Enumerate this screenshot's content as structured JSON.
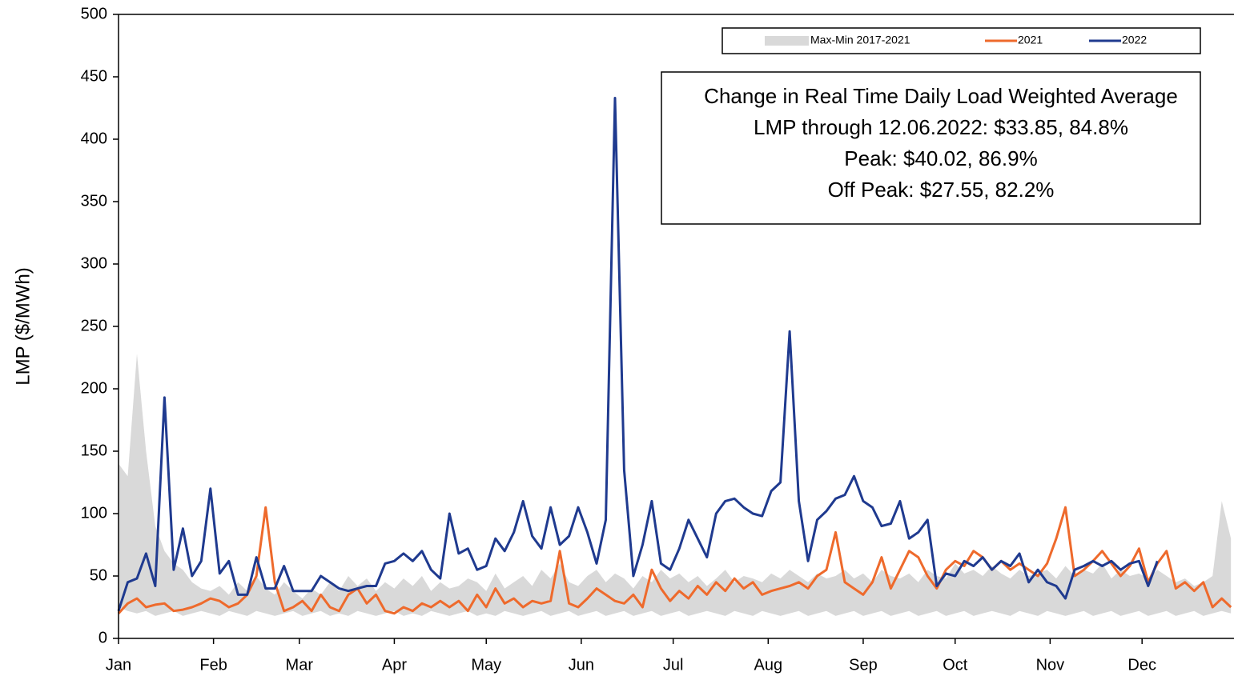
{
  "chart_data": {
    "type": "line",
    "ylabel": "LMP ($/MWh)",
    "annotation": [
      "Change in Real Time Daily Load Weighted Average",
      "LMP through 12.06.2022: $33.85, 84.8%",
      "Peak: $40.02, 86.9%",
      "Off Peak: $27.55, 82.2%"
    ],
    "legend": "upper right",
    "xlim": [
      1,
      365
    ],
    "xticks": [
      {
        "value": 1,
        "label": "Jan"
      },
      {
        "value": 32,
        "label": "Feb"
      },
      {
        "value": 60,
        "label": "Mar"
      },
      {
        "value": 91,
        "label": "Apr"
      },
      {
        "value": 121,
        "label": "May"
      },
      {
        "value": 152,
        "label": "Jun"
      },
      {
        "value": 182,
        "label": "Jul"
      },
      {
        "value": 213,
        "label": "Aug"
      },
      {
        "value": 244,
        "label": "Sep"
      },
      {
        "value": 274,
        "label": "Oct"
      },
      {
        "value": 305,
        "label": "Nov"
      },
      {
        "value": 335,
        "label": "Dec"
      }
    ],
    "ylim": [
      0,
      500
    ],
    "yticks": [
      0,
      50,
      100,
      150,
      200,
      250,
      300,
      350,
      400,
      450,
      500
    ],
    "x": [
      1,
      4,
      7,
      10,
      13,
      16,
      19,
      22,
      25,
      28,
      31,
      34,
      37,
      40,
      43,
      46,
      49,
      52,
      55,
      58,
      61,
      64,
      67,
      70,
      73,
      76,
      79,
      82,
      85,
      88,
      91,
      94,
      97,
      100,
      103,
      106,
      109,
      112,
      115,
      118,
      121,
      124,
      127,
      130,
      133,
      136,
      139,
      142,
      145,
      148,
      151,
      154,
      157,
      160,
      163,
      166,
      169,
      172,
      175,
      178,
      181,
      184,
      187,
      190,
      193,
      196,
      199,
      202,
      205,
      208,
      211,
      214,
      217,
      220,
      223,
      226,
      229,
      232,
      235,
      238,
      241,
      244,
      247,
      250,
      253,
      256,
      259,
      262,
      265,
      268,
      271,
      274,
      277,
      280,
      283,
      286,
      289,
      292,
      295,
      298,
      301,
      304,
      307,
      310,
      313,
      316,
      319,
      322,
      325,
      328,
      331,
      334,
      337,
      340,
      343,
      346,
      349,
      352,
      355,
      358,
      361,
      364
    ],
    "series": [
      {
        "name": "Max-Min 2017-2021",
        "kind": "band",
        "color": "#d9d9d9",
        "values": [
          140,
          130,
          228,
          150,
          90,
          70,
          60,
          55,
          45,
          40,
          38,
          42,
          35,
          45,
          38,
          50,
          40,
          35,
          45,
          38,
          32,
          40,
          35,
          45,
          38,
          50,
          42,
          48,
          38,
          45,
          40,
          48,
          42,
          50,
          38,
          45,
          40,
          42,
          48,
          45,
          38,
          52,
          40,
          45,
          50,
          42,
          55,
          48,
          60,
          45,
          42,
          50,
          55,
          45,
          52,
          48,
          40,
          50,
          45,
          55,
          48,
          52,
          45,
          50,
          42,
          48,
          55,
          45,
          50,
          48,
          45,
          52,
          48,
          55,
          50,
          45,
          52,
          48,
          50,
          55,
          48,
          52,
          45,
          55,
          50,
          48,
          52,
          45,
          55,
          50,
          48,
          60,
          52,
          55,
          50,
          58,
          52,
          48,
          55,
          50,
          52,
          55,
          48,
          58,
          50,
          55,
          52,
          60,
          48,
          55,
          50,
          52,
          48,
          55,
          50,
          45,
          48,
          42,
          45,
          50,
          110,
          80
        ],
        "min": [
          25,
          22,
          20,
          22,
          18,
          20,
          22,
          18,
          20,
          22,
          20,
          18,
          22,
          20,
          18,
          22,
          20,
          18,
          20,
          22,
          18,
          20,
          22,
          18,
          20,
          18,
          22,
          20,
          18,
          20,
          22,
          18,
          20,
          18,
          22,
          20,
          18,
          20,
          22,
          18,
          20,
          18,
          22,
          20,
          18,
          20,
          22,
          18,
          20,
          22,
          18,
          20,
          22,
          18,
          20,
          22,
          18,
          20,
          22,
          18,
          20,
          22,
          18,
          20,
          22,
          20,
          18,
          22,
          20,
          18,
          22,
          20,
          18,
          20,
          22,
          18,
          20,
          22,
          18,
          20,
          22,
          18,
          20,
          22,
          18,
          20,
          22,
          18,
          20,
          22,
          18,
          20,
          22,
          18,
          20,
          22,
          20,
          18,
          22,
          20,
          18,
          22,
          20,
          18,
          20,
          22,
          18,
          20,
          22,
          18,
          20,
          22,
          18,
          20,
          22,
          18,
          20,
          22,
          18,
          20,
          22,
          20
        ]
      },
      {
        "name": "2021",
        "kind": "line",
        "color": "#ee6a2c",
        "values": [
          20,
          28,
          32,
          25,
          27,
          28,
          22,
          23,
          25,
          28,
          32,
          30,
          25,
          28,
          35,
          50,
          105,
          45,
          22,
          25,
          30,
          22,
          35,
          25,
          22,
          35,
          40,
          28,
          35,
          22,
          20,
          25,
          22,
          28,
          25,
          30,
          25,
          30,
          22,
          35,
          25,
          40,
          28,
          32,
          25,
          30,
          28,
          30,
          70,
          28,
          25,
          32,
          40,
          35,
          30,
          28,
          35,
          25,
          55,
          40,
          30,
          38,
          32,
          42,
          35,
          45,
          38,
          48,
          40,
          45,
          35,
          38,
          40,
          42,
          45,
          40,
          50,
          55,
          85,
          45,
          40,
          35,
          45,
          65,
          40,
          55,
          70,
          65,
          50,
          40,
          55,
          62,
          58,
          70,
          65,
          55,
          62,
          55,
          60,
          55,
          50,
          60,
          80,
          105,
          50,
          55,
          62,
          70,
          60,
          50,
          58,
          72,
          45,
          60,
          70,
          40,
          45,
          38,
          45,
          25,
          32,
          25
        ]
      },
      {
        "name": "2022",
        "kind": "line",
        "color": "#1f3a8f",
        "values": [
          22,
          45,
          48,
          68,
          42,
          193,
          55,
          88,
          50,
          62,
          120,
          52,
          62,
          35,
          35,
          65,
          40,
          40,
          58,
          38,
          38,
          38,
          50,
          45,
          40,
          38,
          40,
          42,
          42,
          60,
          62,
          68,
          62,
          70,
          55,
          48,
          100,
          68,
          72,
          55,
          58,
          80,
          70,
          85,
          110,
          82,
          72,
          105,
          75,
          82,
          105,
          85,
          60,
          95,
          433,
          135,
          50,
          75,
          110,
          60,
          55,
          72,
          95,
          80,
          65,
          100,
          110,
          112,
          105,
          100,
          98,
          118,
          125,
          246,
          110,
          62,
          95,
          102,
          112,
          115,
          130,
          110,
          105,
          90,
          92,
          110,
          80,
          85,
          95,
          42,
          52,
          50,
          62,
          58,
          65,
          55,
          62,
          58,
          68,
          45,
          55,
          45,
          42,
          32,
          55,
          58,
          62,
          58,
          62,
          55,
          60,
          62,
          42,
          62,
          null,
          null,
          null,
          null,
          null,
          null,
          null,
          null
        ]
      }
    ]
  }
}
